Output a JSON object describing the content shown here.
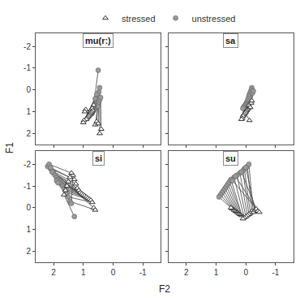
{
  "chart_data": [
    {
      "type": "scatter",
      "title": "mu(r:)",
      "xlabel": "F2",
      "ylabel": "F1",
      "color": "#222222",
      "grid": false,
      "legend": "top",
      "xlim": [
        2.6,
        -1.6
      ],
      "ylim": [
        2.5,
        -2.6
      ],
      "xticks": [
        2,
        1,
        0,
        -1
      ],
      "yticks": [
        -2,
        -1,
        0,
        1,
        2
      ],
      "tick_labels": "y",
      "series": [
        {
          "name": "stressed",
          "marker": "triangle",
          "color": "#ffffff",
          "values": [
            [
              0.65,
              0.7
            ],
            [
              0.7,
              0.85
            ],
            [
              0.68,
              0.95
            ],
            [
              0.72,
              1.0
            ],
            [
              0.75,
              1.05
            ],
            [
              0.78,
              1.1
            ],
            [
              0.8,
              1.15
            ],
            [
              0.82,
              1.2
            ],
            [
              0.85,
              1.25
            ],
            [
              0.88,
              1.3
            ],
            [
              0.9,
              1.35
            ],
            [
              0.92,
              0.9
            ],
            [
              0.95,
              1.0
            ],
            [
              0.98,
              1.4
            ],
            [
              1.0,
              1.5
            ],
            [
              0.6,
              1.6
            ],
            [
              0.55,
              1.45
            ],
            [
              0.5,
              1.55
            ],
            [
              0.45,
              2.0
            ],
            [
              0.4,
              1.8
            ]
          ]
        },
        {
          "name": "unstressed",
          "marker": "circle",
          "color": "#999999",
          "values": [
            [
              0.5,
              -0.9
            ],
            [
              0.48,
              0.1
            ],
            [
              0.45,
              -0.1
            ],
            [
              0.5,
              0.3
            ],
            [
              0.52,
              0.5
            ],
            [
              0.55,
              0.6
            ],
            [
              0.58,
              0.7
            ],
            [
              0.6,
              0.8
            ],
            [
              0.62,
              0.85
            ],
            [
              0.65,
              0.9
            ],
            [
              0.68,
              1.0
            ],
            [
              0.7,
              1.05
            ],
            [
              0.72,
              1.1
            ],
            [
              0.6,
              0.4
            ],
            [
              0.55,
              0.2
            ],
            [
              0.5,
              0.65
            ],
            [
              0.52,
              0.75
            ],
            [
              0.48,
              0.55
            ],
            [
              0.45,
              0.45
            ],
            [
              0.42,
              0.35
            ]
          ]
        }
      ]
    },
    {
      "type": "scatter",
      "title": "sa",
      "color": "#222222",
      "grid": false,
      "xlim": [
        2.6,
        -1.6
      ],
      "ylim": [
        2.5,
        -2.6
      ],
      "xticks": [
        2,
        1,
        0,
        -1
      ],
      "yticks": [
        -2,
        -1,
        0,
        1,
        2
      ],
      "tick_labels": false,
      "series": [
        {
          "name": "stressed",
          "marker": "triangle",
          "color": "#ffffff",
          "values": [
            [
              -0.1,
              0.7
            ],
            [
              -0.08,
              0.85
            ],
            [
              -0.05,
              0.9
            ],
            [
              -0.02,
              0.95
            ],
            [
              0.0,
              1.0
            ],
            [
              0.02,
              1.05
            ],
            [
              0.05,
              1.1
            ],
            [
              0.08,
              1.15
            ],
            [
              0.1,
              1.2
            ],
            [
              0.12,
              1.3
            ],
            [
              0.15,
              1.35
            ],
            [
              -0.15,
              0.8
            ],
            [
              -0.12,
              1.4
            ],
            [
              -0.18,
              0.6
            ],
            [
              -0.2,
              0.5
            ]
          ]
        },
        {
          "name": "unstressed",
          "marker": "circle",
          "color": "#999999",
          "values": [
            [
              -0.2,
              -0.1
            ],
            [
              -0.18,
              0.0
            ],
            [
              -0.15,
              0.1
            ],
            [
              -0.12,
              0.2
            ],
            [
              -0.1,
              0.3
            ],
            [
              -0.08,
              0.4
            ],
            [
              -0.05,
              0.5
            ],
            [
              -0.02,
              0.6
            ],
            [
              0.0,
              0.65
            ],
            [
              0.02,
              0.7
            ],
            [
              0.05,
              0.75
            ],
            [
              0.08,
              0.8
            ],
            [
              0.1,
              0.85
            ],
            [
              -0.22,
              0.15
            ],
            [
              -0.25,
              0.05
            ]
          ]
        }
      ]
    },
    {
      "type": "scatter",
      "title": "si",
      "color": "#222222",
      "grid": false,
      "xlim": [
        2.6,
        -1.6
      ],
      "ylim": [
        2.5,
        -2.6
      ],
      "xticks": [
        2,
        1,
        0,
        -1
      ],
      "yticks": [
        -2,
        -1,
        0,
        1,
        2
      ],
      "tick_labels": true,
      "series": [
        {
          "name": "stressed",
          "marker": "triangle",
          "color": "#ffffff",
          "values": [
            [
              1.3,
              -1.3
            ],
            [
              1.25,
              -1.1
            ],
            [
              1.2,
              -0.9
            ],
            [
              1.15,
              -0.8
            ],
            [
              1.1,
              -0.7
            ],
            [
              1.05,
              -0.65
            ],
            [
              1.0,
              -0.6
            ],
            [
              0.95,
              -0.55
            ],
            [
              0.9,
              -0.5
            ],
            [
              0.85,
              -0.45
            ],
            [
              0.8,
              -0.4
            ],
            [
              0.75,
              -0.35
            ],
            [
              0.7,
              -0.25
            ],
            [
              0.65,
              0.0
            ],
            [
              0.6,
              0.1
            ],
            [
              1.35,
              -1.5
            ],
            [
              1.4,
              -1.6
            ],
            [
              1.45,
              -1.4
            ],
            [
              1.5,
              -1.2
            ],
            [
              1.55,
              -1.0
            ],
            [
              1.6,
              -0.8
            ],
            [
              1.65,
              -0.6
            ]
          ]
        },
        {
          "name": "unstressed",
          "marker": "circle",
          "color": "#999999",
          "values": [
            [
              2.1,
              -1.8
            ],
            [
              2.05,
              -1.7
            ],
            [
              2.0,
              -1.6
            ],
            [
              1.95,
              -1.5
            ],
            [
              1.9,
              -1.4
            ],
            [
              1.85,
              -1.3
            ],
            [
              1.8,
              -1.2
            ],
            [
              1.75,
              -1.1
            ],
            [
              1.7,
              -1.0
            ],
            [
              1.65,
              -0.9
            ],
            [
              1.6,
              -0.8
            ],
            [
              1.55,
              -0.7
            ],
            [
              1.5,
              -0.5
            ],
            [
              2.2,
              -1.9
            ],
            [
              1.45,
              -0.3
            ],
            [
              1.4,
              -0.2
            ],
            [
              2.15,
              -2.0
            ],
            [
              2.1,
              -1.85
            ],
            [
              2.05,
              -1.65
            ],
            [
              1.9,
              -1.25
            ],
            [
              1.85,
              -1.15
            ],
            [
              1.3,
              0.4
            ]
          ]
        }
      ]
    },
    {
      "type": "scatter",
      "title": "su",
      "color": "#222222",
      "grid": false,
      "xlim": [
        2.6,
        -1.6
      ],
      "ylim": [
        2.5,
        -2.6
      ],
      "xticks": [
        2,
        1,
        0,
        -1
      ],
      "yticks": [
        -2,
        -1,
        0,
        1,
        2
      ],
      "tick_labels": "x",
      "series": [
        {
          "name": "stressed",
          "marker": "triangle",
          "color": "#ffffff",
          "values": [
            [
              -0.2,
              0.15
            ],
            [
              -0.15,
              0.25
            ],
            [
              -0.1,
              0.3
            ],
            [
              -0.05,
              0.35
            ],
            [
              0.0,
              0.4
            ],
            [
              0.05,
              0.45
            ],
            [
              0.1,
              0.5
            ],
            [
              0.15,
              0.35
            ],
            [
              0.2,
              0.3
            ],
            [
              0.25,
              0.25
            ],
            [
              0.3,
              0.2
            ],
            [
              0.35,
              0.15
            ],
            [
              0.4,
              0.1
            ],
            [
              0.45,
              0.05
            ],
            [
              0.5,
              0.0
            ],
            [
              -0.25,
              0.2
            ],
            [
              -0.3,
              0.1
            ],
            [
              -0.35,
              0.05
            ],
            [
              -0.4,
              0.15
            ],
            [
              -0.45,
              0.2
            ]
          ]
        },
        {
          "name": "unstressed",
          "marker": "circle",
          "color": "#999999",
          "values": [
            [
              -0.05,
              -1.9
            ],
            [
              0.05,
              -1.8
            ],
            [
              0.1,
              -1.7
            ],
            [
              0.2,
              -1.6
            ],
            [
              0.3,
              -1.5
            ],
            [
              0.4,
              -1.4
            ],
            [
              0.5,
              -1.3
            ],
            [
              0.55,
              -1.2
            ],
            [
              0.6,
              -1.1
            ],
            [
              0.65,
              -1.0
            ],
            [
              0.7,
              -0.9
            ],
            [
              0.75,
              -0.8
            ],
            [
              0.8,
              -0.7
            ],
            [
              0.85,
              -0.6
            ],
            [
              0.9,
              -0.5
            ],
            [
              -0.1,
              -2.0
            ],
            [
              0.0,
              -1.85
            ],
            [
              0.15,
              -1.65
            ],
            [
              0.35,
              -1.45
            ],
            [
              0.45,
              -1.25
            ]
          ]
        }
      ]
    }
  ]
}
